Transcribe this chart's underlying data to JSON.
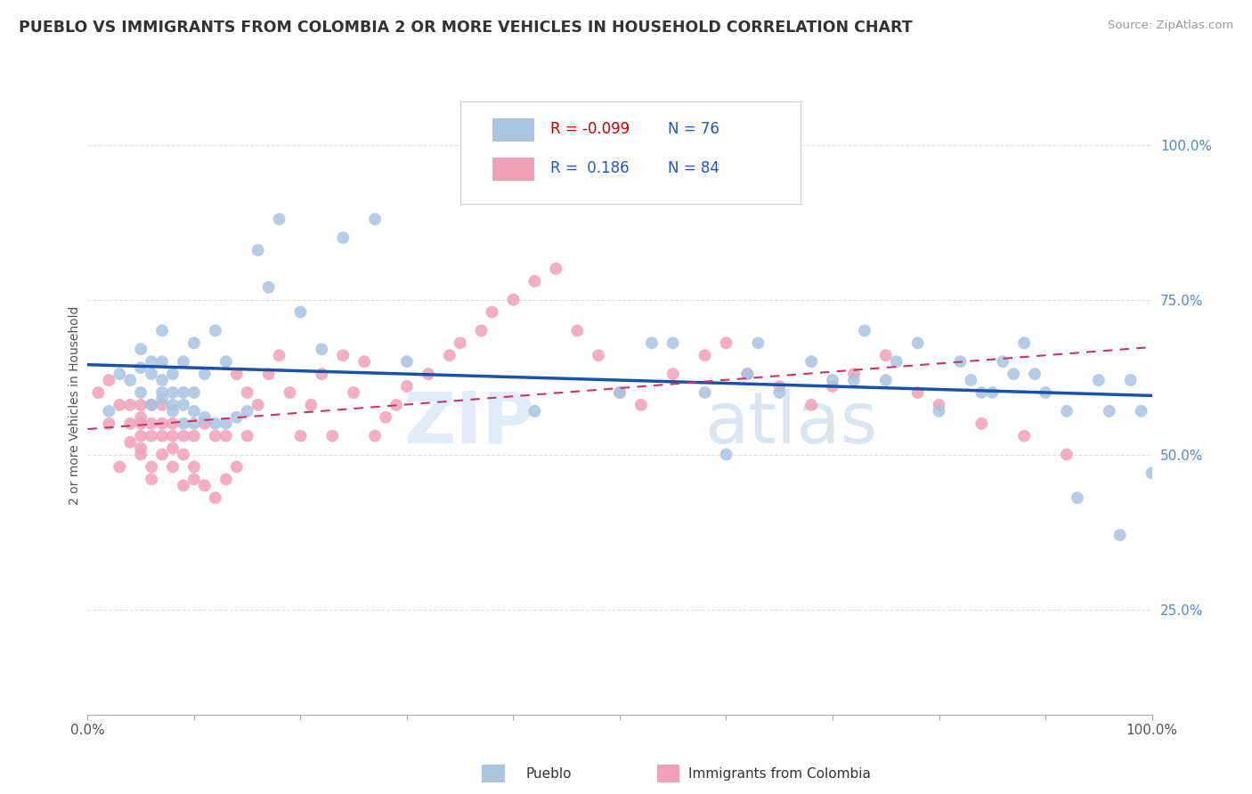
{
  "title": "PUEBLO VS IMMIGRANTS FROM COLOMBIA 2 OR MORE VEHICLES IN HOUSEHOLD CORRELATION CHART",
  "source": "Source: ZipAtlas.com",
  "ylabel": "2 or more Vehicles in Household",
  "xlim": [
    0,
    1.0
  ],
  "ylim": [
    0.08,
    1.08
  ],
  "ytick_positions": [
    0.25,
    0.5,
    0.75,
    1.0
  ],
  "ytick_labels": [
    "25.0%",
    "50.0%",
    "75.0%",
    "100.0%"
  ],
  "pueblo_color": "#aac4e0",
  "colombia_color": "#f0a0b8",
  "pueblo_R": -0.099,
  "pueblo_N": 76,
  "colombia_R": 0.186,
  "colombia_N": 84,
  "trend_blue_color": "#1a52aa",
  "trend_pink_color": "#cc3366",
  "watermark_zip": "ZIP",
  "watermark_atlas": "atlas",
  "legend_label_1": "Pueblo",
  "legend_label_2": "Immigrants from Colombia",
  "pueblo_x": [
    0.02,
    0.03,
    0.04,
    0.05,
    0.05,
    0.05,
    0.06,
    0.06,
    0.06,
    0.07,
    0.07,
    0.07,
    0.07,
    0.07,
    0.08,
    0.08,
    0.08,
    0.08,
    0.09,
    0.09,
    0.09,
    0.09,
    0.1,
    0.1,
    0.1,
    0.1,
    0.11,
    0.11,
    0.12,
    0.12,
    0.13,
    0.13,
    0.14,
    0.15,
    0.16,
    0.17,
    0.18,
    0.2,
    0.22,
    0.24,
    0.27,
    0.3,
    0.42,
    0.5,
    0.53,
    0.55,
    0.58,
    0.6,
    0.62,
    0.63,
    0.65,
    0.68,
    0.7,
    0.72,
    0.73,
    0.75,
    0.76,
    0.78,
    0.8,
    0.82,
    0.83,
    0.84,
    0.85,
    0.86,
    0.87,
    0.88,
    0.89,
    0.9,
    0.92,
    0.93,
    0.95,
    0.96,
    0.97,
    0.98,
    0.99,
    1.0
  ],
  "pueblo_y": [
    0.57,
    0.63,
    0.62,
    0.6,
    0.64,
    0.67,
    0.58,
    0.63,
    0.65,
    0.59,
    0.6,
    0.62,
    0.65,
    0.7,
    0.57,
    0.58,
    0.6,
    0.63,
    0.55,
    0.58,
    0.6,
    0.65,
    0.55,
    0.57,
    0.6,
    0.68,
    0.56,
    0.63,
    0.55,
    0.7,
    0.55,
    0.65,
    0.56,
    0.57,
    0.83,
    0.77,
    0.88,
    0.73,
    0.67,
    0.85,
    0.88,
    0.65,
    0.57,
    0.6,
    0.68,
    0.68,
    0.6,
    0.5,
    0.63,
    0.68,
    0.6,
    0.65,
    0.62,
    0.62,
    0.7,
    0.62,
    0.65,
    0.68,
    0.57,
    0.65,
    0.62,
    0.6,
    0.6,
    0.65,
    0.63,
    0.68,
    0.63,
    0.6,
    0.57,
    0.43,
    0.62,
    0.57,
    0.37,
    0.62,
    0.57,
    0.47
  ],
  "colombia_x": [
    0.01,
    0.02,
    0.02,
    0.03,
    0.03,
    0.04,
    0.04,
    0.04,
    0.05,
    0.05,
    0.05,
    0.05,
    0.05,
    0.05,
    0.06,
    0.06,
    0.06,
    0.06,
    0.06,
    0.07,
    0.07,
    0.07,
    0.07,
    0.08,
    0.08,
    0.08,
    0.08,
    0.09,
    0.09,
    0.09,
    0.1,
    0.1,
    0.1,
    0.11,
    0.11,
    0.12,
    0.12,
    0.13,
    0.13,
    0.14,
    0.14,
    0.15,
    0.15,
    0.16,
    0.17,
    0.18,
    0.19,
    0.2,
    0.21,
    0.22,
    0.23,
    0.24,
    0.25,
    0.26,
    0.27,
    0.28,
    0.29,
    0.3,
    0.32,
    0.34,
    0.35,
    0.37,
    0.38,
    0.4,
    0.42,
    0.44,
    0.46,
    0.48,
    0.5,
    0.52,
    0.55,
    0.58,
    0.6,
    0.62,
    0.65,
    0.68,
    0.7,
    0.72,
    0.75,
    0.78,
    0.8,
    0.84,
    0.88,
    0.92
  ],
  "colombia_y": [
    0.6,
    0.55,
    0.62,
    0.48,
    0.58,
    0.55,
    0.58,
    0.52,
    0.55,
    0.53,
    0.56,
    0.58,
    0.51,
    0.5,
    0.48,
    0.46,
    0.53,
    0.55,
    0.58,
    0.53,
    0.5,
    0.55,
    0.58,
    0.48,
    0.53,
    0.55,
    0.51,
    0.5,
    0.45,
    0.53,
    0.48,
    0.46,
    0.53,
    0.45,
    0.55,
    0.43,
    0.53,
    0.46,
    0.53,
    0.48,
    0.63,
    0.53,
    0.6,
    0.58,
    0.63,
    0.66,
    0.6,
    0.53,
    0.58,
    0.63,
    0.53,
    0.66,
    0.6,
    0.65,
    0.53,
    0.56,
    0.58,
    0.61,
    0.63,
    0.66,
    0.68,
    0.7,
    0.73,
    0.75,
    0.78,
    0.8,
    0.7,
    0.66,
    0.6,
    0.58,
    0.63,
    0.66,
    0.68,
    0.63,
    0.61,
    0.58,
    0.61,
    0.63,
    0.66,
    0.6,
    0.58,
    0.55,
    0.53,
    0.5
  ],
  "background_color": "#ffffff",
  "grid_color": "#e0e0e0"
}
